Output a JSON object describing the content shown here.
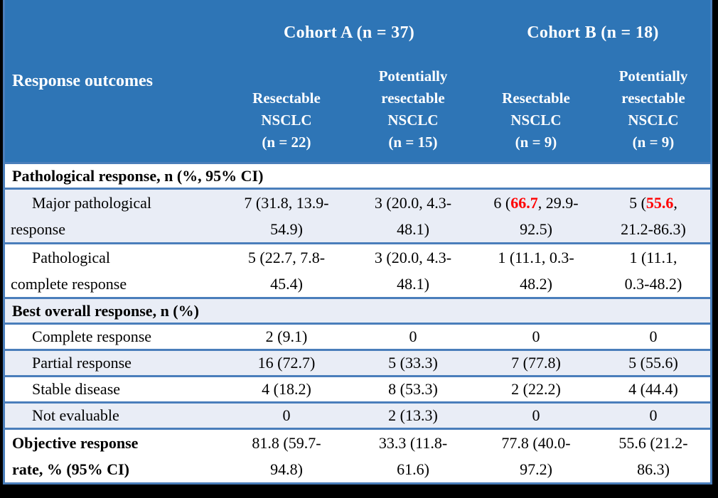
{
  "colors": {
    "header_bg": "#2e75b6",
    "border_blue": "#4a7ebb",
    "band_row_bg": "#e9edf6",
    "highlight_red": "#ff0000",
    "frame_black": "#000000"
  },
  "table": {
    "header": {
      "response_outcomes": "Response outcomes",
      "cohort_a": "Cohort A (n = 37)",
      "cohort_b": "Cohort B (n = 18)",
      "subheaders": [
        "Resectable\nNSCLC\n(n = 22)",
        "Potentially\nresectable\nNSCLC\n(n = 15)",
        "Resectable\nNSCLC\n(n = 9)",
        "Potentially\nresectable\nNSCLC\n(n = 9)"
      ]
    },
    "rows": [
      {
        "kind": "section",
        "label": "Pathological response, n (%, 95% CI)"
      },
      {
        "kind": "data",
        "label": "Major pathological\nresponse",
        "cells": [
          {
            "text": "7 (31.8, 13.9-\n54.9)"
          },
          {
            "text": "3 (20.0, 4.3-\n48.1)"
          },
          {
            "pre": "6 (",
            "highlight": "66.7",
            "post": ", 29.9-\n92.5)"
          },
          {
            "pre": "5 (",
            "highlight": "55.6",
            "post": ",\n21.2-86.3)"
          }
        ]
      },
      {
        "kind": "data",
        "label": "Pathological\ncomplete response",
        "cells": [
          {
            "text": "5 (22.7, 7.8-\n45.4)"
          },
          {
            "text": "3 (20.0, 4.3-\n48.1)"
          },
          {
            "text": "1 (11.1, 0.3-\n48.2)"
          },
          {
            "text": "1 (11.1,\n0.3-48.2)"
          }
        ]
      },
      {
        "kind": "section",
        "label": "Best overall response, n (%)"
      },
      {
        "kind": "data",
        "label": "Complete response",
        "cells": [
          {
            "text": "2 (9.1)"
          },
          {
            "text": "0"
          },
          {
            "text": "0"
          },
          {
            "text": "0"
          }
        ]
      },
      {
        "kind": "data",
        "label": "Partial response",
        "cells": [
          {
            "text": "16 (72.7)"
          },
          {
            "text": "5 (33.3)"
          },
          {
            "text": "7 (77.8)"
          },
          {
            "text": "5 (55.6)"
          }
        ]
      },
      {
        "kind": "data",
        "label": "Stable disease",
        "cells": [
          {
            "text": "4 (18.2)"
          },
          {
            "text": "8 (53.3)"
          },
          {
            "text": "2 (22.2)"
          },
          {
            "text": "4 (44.4)"
          }
        ]
      },
      {
        "kind": "data",
        "label": "Not evaluable",
        "cells": [
          {
            "text": "0"
          },
          {
            "text": "2 (13.3)"
          },
          {
            "text": "0"
          },
          {
            "text": "0"
          }
        ]
      },
      {
        "kind": "data",
        "label": "Objective response\nrate, % (95% CI)",
        "cells": [
          {
            "text": "81.8 (59.7-\n94.8)"
          },
          {
            "text": "33.3 (11.8-\n61.6)"
          },
          {
            "text": "77.8 (40.0-\n97.2)"
          },
          {
            "text": "55.6 (21.2-\n86.3)"
          }
        ]
      }
    ]
  }
}
